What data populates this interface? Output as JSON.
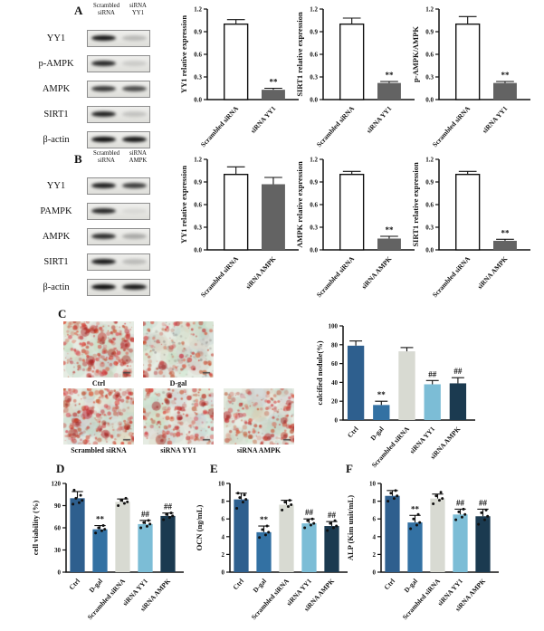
{
  "panel_letters": {
    "A": "A",
    "B": "B",
    "C": "C",
    "D": "D",
    "E": "E",
    "F": "F"
  },
  "blots": [
    {
      "panel": "A",
      "col_headers": [
        "Scrambled\nsiRNA",
        "siRNA\nYY1"
      ],
      "rows": [
        {
          "label": "YY1",
          "bands": [
            0.95,
            0.2
          ]
        },
        {
          "label": "p-AMPK",
          "bands": [
            0.88,
            0.12
          ]
        },
        {
          "label": "AMPK",
          "bands": [
            0.8,
            0.72
          ]
        },
        {
          "label": "SIRT1",
          "bands": [
            0.9,
            0.16
          ]
        },
        {
          "label": "β-actin",
          "bands": [
            1.0,
            0.97
          ]
        }
      ]
    },
    {
      "panel": "B",
      "col_headers": [
        "Scrambled\nsiRNA",
        "siRNA\nAMPK"
      ],
      "rows": [
        {
          "label": "YY1",
          "bands": [
            0.92,
            0.78
          ]
        },
        {
          "label": "PAMPK",
          "bands": [
            0.88,
            0.06
          ]
        },
        {
          "label": "AMPK",
          "bands": [
            0.85,
            0.28
          ]
        },
        {
          "label": "SIRT1",
          "bands": [
            0.95,
            0.2
          ]
        },
        {
          "label": "β-actin",
          "bands": [
            1.0,
            0.95
          ]
        }
      ]
    }
  ],
  "stain_images": [
    {
      "label": "Ctrl",
      "seed": 11,
      "dots": 260,
      "clusters": 12,
      "gray": 0
    },
    {
      "label": "D-gal",
      "seed": 22,
      "dots": 110,
      "clusters": 3,
      "gray": 90
    },
    {
      "label": "Scrambled siRNA",
      "seed": 33,
      "dots": 250,
      "clusters": 11,
      "gray": 0
    },
    {
      "label": "siRNA YY1",
      "seed": 44,
      "dots": 185,
      "clusters": 7,
      "gray": 20
    },
    {
      "label": "siRNA AMPK",
      "seed": 55,
      "dots": 175,
      "clusters": 7,
      "gray": 20
    }
  ],
  "chart_data": [
    {
      "id": "A1",
      "type": "bar",
      "layout": "small",
      "ylabel": "YY1 relative expression",
      "ylim": [
        0,
        1.2
      ],
      "yticks": [
        "0.0",
        "0.3",
        "0.6",
        "0.9",
        "1.2"
      ],
      "categories": [
        "Scrambled siRNA",
        "siRNA YY1"
      ],
      "values": [
        1.0,
        0.13
      ],
      "errors": [
        0.06,
        0.02
      ],
      "sig": [
        "",
        "**"
      ],
      "colors": [
        "#ffffff",
        "#636363"
      ],
      "grid": false,
      "legend": "none"
    },
    {
      "id": "A2",
      "type": "bar",
      "layout": "small",
      "ylabel": "SIRT1 relative expression",
      "ylim": [
        0,
        1.2
      ],
      "yticks": [
        "0.0",
        "0.3",
        "0.6",
        "0.9",
        "1.2"
      ],
      "categories": [
        "Scrambled siRNA",
        "siRNA YY1"
      ],
      "values": [
        1.0,
        0.22
      ],
      "errors": [
        0.08,
        0.02
      ],
      "sig": [
        "",
        "**"
      ],
      "colors": [
        "#ffffff",
        "#636363"
      ],
      "grid": false,
      "legend": "none"
    },
    {
      "id": "A3",
      "type": "bar",
      "layout": "small",
      "ylabel": "p-AMPK/AMPK",
      "ylim": [
        0,
        1.2
      ],
      "yticks": [
        "0.0",
        "0.3",
        "0.6",
        "0.9",
        "1.2"
      ],
      "categories": [
        "Scrambled siRNA",
        "siRNA YY1"
      ],
      "values": [
        1.0,
        0.22
      ],
      "errors": [
        0.1,
        0.02
      ],
      "sig": [
        "",
        "**"
      ],
      "colors": [
        "#ffffff",
        "#636363"
      ],
      "grid": false,
      "legend": "none"
    },
    {
      "id": "B1",
      "type": "bar",
      "layout": "small",
      "ylabel": "YY1 relative expression",
      "ylim": [
        0,
        1.2
      ],
      "yticks": [
        "0.0",
        "0.3",
        "0.6",
        "0.9",
        "1.2"
      ],
      "categories": [
        "Scrambled siRNA",
        "siRNA AMPK"
      ],
      "values": [
        1.0,
        0.87
      ],
      "errors": [
        0.1,
        0.09
      ],
      "sig": [
        "",
        ""
      ],
      "colors": [
        "#ffffff",
        "#636363"
      ],
      "grid": false,
      "legend": "none"
    },
    {
      "id": "B2",
      "type": "bar",
      "layout": "small",
      "ylabel": "AMPK relative expression",
      "ylim": [
        0,
        1.2
      ],
      "yticks": [
        "0.0",
        "0.3",
        "0.6",
        "0.9",
        "1.2"
      ],
      "categories": [
        "Scrambled siRNA",
        "siRNA AMPK"
      ],
      "values": [
        1.0,
        0.15
      ],
      "errors": [
        0.04,
        0.03
      ],
      "sig": [
        "",
        "**"
      ],
      "colors": [
        "#ffffff",
        "#636363"
      ],
      "grid": false,
      "legend": "none"
    },
    {
      "id": "B3",
      "type": "bar",
      "layout": "small",
      "ylabel": "SIRT1 relative expression",
      "ylim": [
        0,
        1.2
      ],
      "yticks": [
        "0.0",
        "0.3",
        "0.6",
        "0.9",
        "1.2"
      ],
      "categories": [
        "Scrambled siRNA",
        "siRNA AMPK"
      ],
      "values": [
        1.0,
        0.12
      ],
      "errors": [
        0.04,
        0.02
      ],
      "sig": [
        "",
        "**"
      ],
      "colors": [
        "#ffffff",
        "#636363"
      ],
      "grid": false,
      "legend": "none"
    },
    {
      "id": "C",
      "type": "bar",
      "layout": "wide",
      "ylabel": "calcified nodule(%)",
      "ylim": [
        0,
        100
      ],
      "yticks": [
        "0",
        "20",
        "40",
        "60",
        "80",
        "100"
      ],
      "categories": [
        "Ctrl",
        "D-gal",
        "Scrambled siRNA",
        "siRNA YY1",
        "siRNA AMPK"
      ],
      "values": [
        79,
        16,
        73,
        38,
        39
      ],
      "errors": [
        5,
        4,
        4,
        4,
        6
      ],
      "sig": [
        "",
        "**",
        "",
        "##",
        "##"
      ],
      "colors": [
        "#2e5f8e",
        "#3371a3",
        "#d8dad2",
        "#7cbdd6",
        "#1b3a50"
      ],
      "grid": false,
      "legend": "none"
    },
    {
      "id": "D",
      "type": "bar",
      "layout": "tall",
      "ylabel": "cell viability (%)",
      "ylim": [
        0,
        120
      ],
      "yticks": [
        "0",
        "30",
        "60",
        "90",
        "120"
      ],
      "categories": [
        "Ctrl",
        "D-gal",
        "Scrambled siRNA",
        "siRNA YY1",
        "siRNA AMPK"
      ],
      "values": [
        100,
        58,
        95,
        65,
        76
      ],
      "errors": [
        9,
        5,
        4,
        5,
        4
      ],
      "sig": [
        "",
        "**",
        "",
        "##",
        "##"
      ],
      "colors": [
        "#2e5f8e",
        "#3371a3",
        "#d8dad2",
        "#7cbdd6",
        "#1b3a50"
      ],
      "points": [
        [
          92,
          94,
          97,
          100,
          104,
          111
        ],
        [
          53,
          56,
          58,
          60,
          63
        ],
        [
          90,
          93,
          95,
          97,
          100
        ],
        [
          60,
          62,
          65,
          67,
          70
        ],
        [
          71,
          74,
          76,
          78,
          80
        ]
      ],
      "grid": false,
      "legend": "none"
    },
    {
      "id": "E",
      "type": "bar",
      "layout": "tall",
      "ylabel": "OCN (ng/mL)",
      "ylim": [
        0,
        10
      ],
      "yticks": [
        "0",
        "2",
        "4",
        "6",
        "8",
        "10"
      ],
      "categories": [
        "Ctrl",
        "D-gal",
        "Scrambled siRNA",
        "siRNA YY1",
        "siRNA AMPK"
      ],
      "values": [
        8.2,
        4.5,
        7.6,
        5.5,
        5.2
      ],
      "errors": [
        0.7,
        0.7,
        0.5,
        0.5,
        0.5
      ],
      "sig": [
        "",
        "**",
        "",
        "##",
        "##"
      ],
      "colors": [
        "#2e5f8e",
        "#3371a3",
        "#d8dad2",
        "#7cbdd6",
        "#1b3a50"
      ],
      "points": [
        [
          7.2,
          7.9,
          8.2,
          8.4,
          8.7,
          8.9
        ],
        [
          3.9,
          4.2,
          4.5,
          4.8,
          5.2
        ],
        [
          7.0,
          7.4,
          7.6,
          7.9,
          8.1
        ],
        [
          5.0,
          5.3,
          5.5,
          5.8,
          6.0
        ],
        [
          4.7,
          5.0,
          5.2,
          5.5,
          5.8
        ]
      ],
      "grid": false,
      "legend": "none"
    },
    {
      "id": "F",
      "type": "bar",
      "layout": "tall",
      "ylabel": "ALP (Kim unit/mL)",
      "ylim": [
        0,
        10
      ],
      "yticks": [
        "0",
        "2",
        "4",
        "6",
        "8",
        "10"
      ],
      "categories": [
        "Ctrl",
        "D-gal",
        "Scrambled siRNA",
        "siRNA YY1",
        "siRNA AMPK"
      ],
      "values": [
        8.6,
        5.6,
        8.3,
        6.5,
        6.3
      ],
      "errors": [
        0.6,
        0.8,
        0.5,
        0.6,
        0.8
      ],
      "sig": [
        "",
        "**",
        "",
        "##",
        "##"
      ],
      "colors": [
        "#2e5f8e",
        "#3371a3",
        "#d8dad2",
        "#7cbdd6",
        "#1b3a50"
      ],
      "points": [
        [
          8.0,
          8.3,
          8.6,
          8.9,
          9.2
        ],
        [
          4.9,
          5.3,
          5.6,
          6.0,
          6.5
        ],
        [
          7.7,
          8.1,
          8.3,
          8.6,
          9.0
        ],
        [
          5.9,
          6.2,
          6.5,
          6.8,
          7.1
        ],
        [
          5.4,
          5.9,
          6.3,
          6.7,
          7.0
        ]
      ],
      "grid": false,
      "legend": "none"
    }
  ]
}
